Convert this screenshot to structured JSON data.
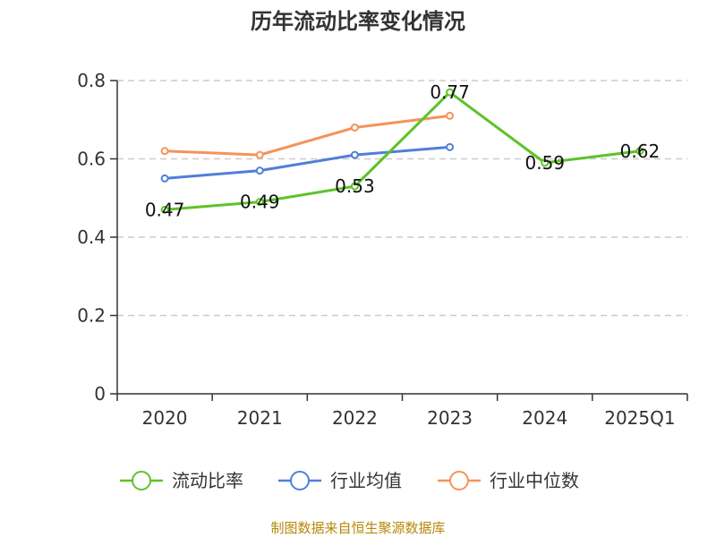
{
  "chart_data": {
    "type": "line",
    "title": "历年流动比率变化情况",
    "categories": [
      "2020",
      "2021",
      "2022",
      "2023",
      "2024",
      "2025Q1"
    ],
    "ylim": [
      0,
      0.8
    ],
    "yticks": [
      "0",
      "0.2",
      "0.4",
      "0.6",
      "0.8"
    ],
    "grid": true,
    "legend_position": "bottom",
    "series": [
      {
        "name": "流动比率",
        "color": "#5ec229",
        "values": [
          0.47,
          0.49,
          0.53,
          0.77,
          0.59,
          0.62
        ],
        "labels": [
          "0.47",
          "0.49",
          "0.53",
          "0.77",
          "0.59",
          "0.62"
        ]
      },
      {
        "name": "行业均值",
        "color": "#4f7fd8",
        "values": [
          0.55,
          0.57,
          0.61,
          0.63,
          null,
          null
        ]
      },
      {
        "name": "行业中位数",
        "color": "#f5935a",
        "values": [
          0.62,
          0.61,
          0.68,
          0.71,
          null,
          null
        ]
      }
    ]
  },
  "source": "制图数据来自恒生聚源数据库"
}
